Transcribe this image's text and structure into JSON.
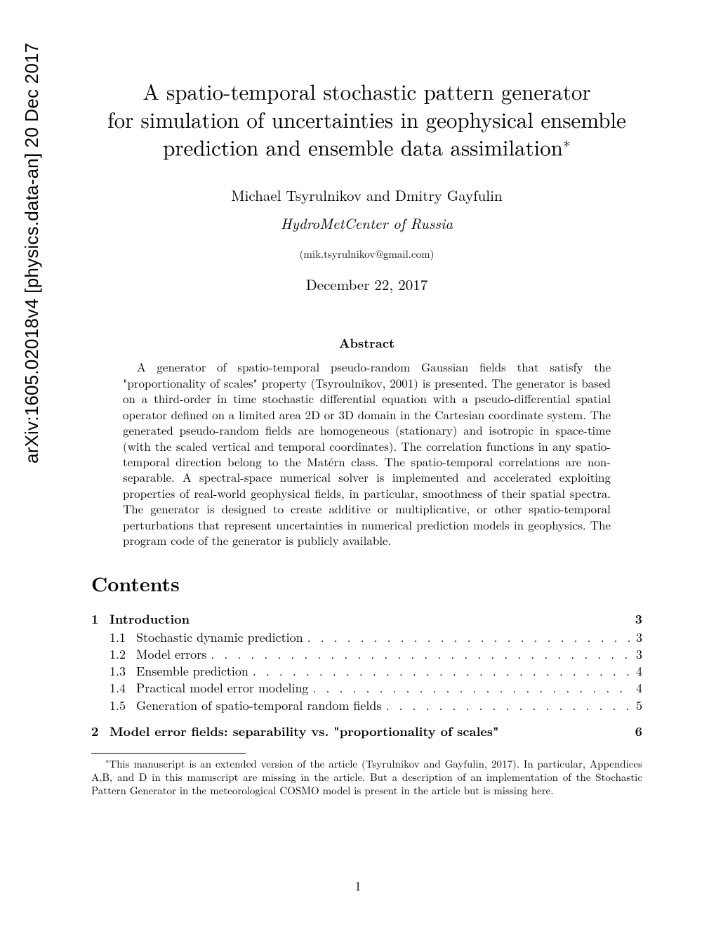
{
  "arxiv_stamp": "arXiv:1605.02018v4  [physics.data-an]  20 Dec 2017",
  "title_line1": "A spatio-temporal stochastic pattern generator",
  "title_line2": "for simulation of uncertainties in geophysical ensemble",
  "title_line3": "prediction and ensemble data assimilation",
  "title_footnote_mark": "∗",
  "authors": "Michael Tsyrulnikov and Dmitry Gayfulin",
  "affiliation": "HydroMetCenter of Russia",
  "email": "(mik.tsyrulnikov@gmail.com)",
  "date": "December 22, 2017",
  "abstract_heading": "Abstract",
  "abstract_body": "A generator of spatio-temporal pseudo-random Gaussian fields that satisfy the \"proportionality of scales\" property (Tsyroulnikov, 2001) is presented. The generator is based on a third-order in time stochastic differential equation with a pseudo-differential spatial operator defined on a limited area 2D or 3D domain in the Cartesian coordinate system. The generated pseudo-random fields are homogeneous (stationary) and isotropic in space-time (with the scaled vertical and temporal coordinates). The correlation functions in any spatio-temporal direction belong to the Matérn class. The spatio-temporal correlations are non-separable. A spectral-space numerical solver is implemented and accelerated exploiting properties of real-world geophysical fields, in particular, smoothness of their spatial spectra. The generator is designed to create additive or multiplicative, or other spatio-temporal perturbations that represent uncertainties in numerical prediction models in geophysics. The program code of the generator is publicly available.",
  "contents_heading": "Contents",
  "toc": {
    "section1": {
      "num": "1",
      "title": "Introduction",
      "page": "3"
    },
    "sub11": {
      "num": "1.1",
      "title": "Stochastic dynamic prediction",
      "page": "3"
    },
    "sub12": {
      "num": "1.2",
      "title": "Model errors",
      "page": "3"
    },
    "sub13": {
      "num": "1.3",
      "title": "Ensemble prediction",
      "page": "4"
    },
    "sub14": {
      "num": "1.4",
      "title": "Practical model error modeling",
      "page": "4"
    },
    "sub15": {
      "num": "1.5",
      "title": "Generation of spatio-temporal random fields",
      "page": "5"
    },
    "section2": {
      "num": "2",
      "title": "Model error fields: separability vs. \"proportionality of scales\"",
      "page": "6"
    }
  },
  "footnote_mark": "∗",
  "footnote_text": "This manuscript is an extended version of the article (Tsyrulnikov and Gayfulin, 2017). In particular, Appendices A,B, and D in this manuscript are missing in the article. But a description of an implementation of the Stochastic Pattern Generator in the meteorological COSMO model is present in the article but is missing here.",
  "page_number": "1",
  "dots_fill": ". . . . . . . . . . . . . . . . . . . . . . . . . . . . . . . . . . . . . . . . . . . . . . . . . . . . . . . . . . . . . . . . . . . . . . . . . ."
}
